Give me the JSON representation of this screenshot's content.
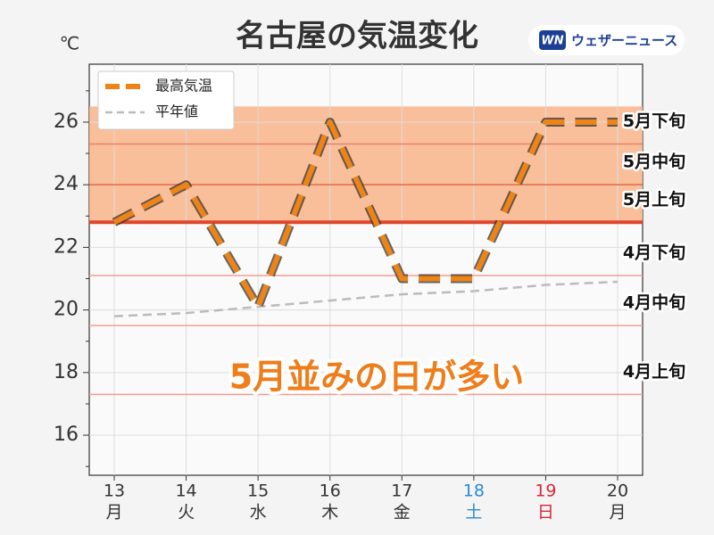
{
  "chart_data": {
    "type": "line",
    "title": "名古屋の気温変化",
    "y_unit": "℃",
    "brand": "ウェザーニュース",
    "brand_mark": "WN",
    "categories": [
      "13",
      "14",
      "15",
      "16",
      "17",
      "18",
      "19",
      "20"
    ],
    "weekdays": [
      "月",
      "火",
      "水",
      "木",
      "金",
      "土",
      "日",
      "月"
    ],
    "label_colors": [
      "#333333",
      "#333333",
      "#333333",
      "#333333",
      "#333333",
      "#2a8ad8",
      "#d8283a",
      "#333333"
    ],
    "series": [
      {
        "name": "最高気温",
        "color": "#ee8416",
        "dashed": true,
        "values": [
          22.8,
          24,
          20.1,
          26,
          21,
          21,
          26,
          26
        ]
      },
      {
        "name": "平年値",
        "color": "#bbbbbb",
        "dashed": true,
        "values": [
          19.8,
          19.9,
          20.1,
          20.3,
          20.5,
          20.6,
          20.8,
          20.9
        ]
      }
    ],
    "band": {
      "range": [
        22.8,
        26.5
      ],
      "color": "#f8b48a"
    },
    "reference_lines": [
      {
        "label": "5月下旬",
        "value": 25.3,
        "color": "#e8826a"
      },
      {
        "label": "5月中旬",
        "value": 24,
        "color": "#e06a45"
      },
      {
        "label": "5月上旬",
        "value": 22.8,
        "color": "#e0462c",
        "bold": true
      },
      {
        "label": "4月下旬",
        "value": 21.1,
        "color": "#f0a090"
      },
      {
        "label": "4月中旬",
        "value": 19.5,
        "color": "#f0a090"
      },
      {
        "label": "4月上旬",
        "value": 17.3,
        "color": "#f0a090"
      }
    ],
    "annotation": "5月並みの日が多い",
    "ylim": [
      14.72,
      27.85
    ],
    "yticks": [
      16,
      18,
      20,
      22,
      24,
      26
    ],
    "minor_yticks": [
      15,
      17,
      19,
      21,
      23,
      25,
      27
    ],
    "grid": true,
    "legend": "upper left"
  }
}
